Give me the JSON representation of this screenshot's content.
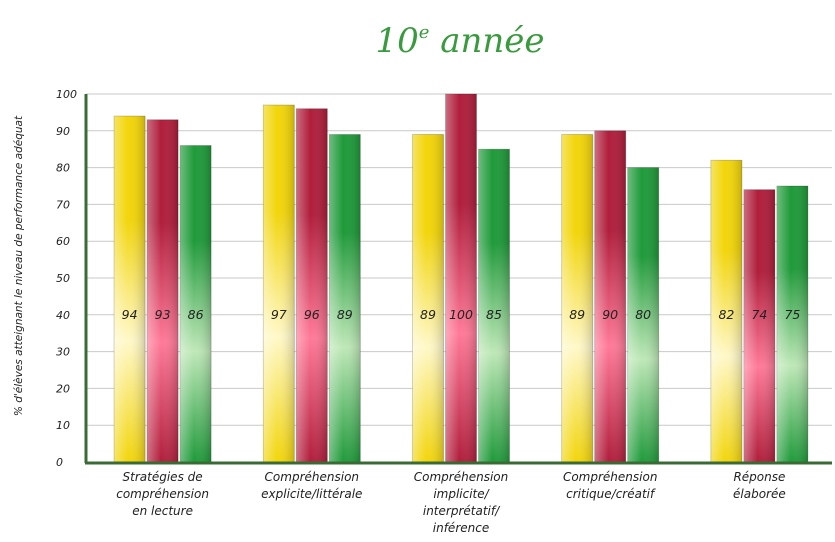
{
  "chart_data": {
    "type": "bar",
    "title_main": "10",
    "title_sup": "e",
    "title_rest": " année",
    "ylabel": "% d'élèves atteignant le niveau de performance adéquat",
    "ylim": [
      0,
      100
    ],
    "yticks": [
      "0",
      "10",
      "20",
      "30",
      "40",
      "50",
      "60",
      "70",
      "80",
      "90",
      "100"
    ],
    "categories": [
      [
        "Stratégies de",
        "compréhension",
        "en lecture"
      ],
      [
        "Compréhension",
        "explicite/littérale"
      ],
      [
        "Compréhension",
        "implicite/",
        "interprétatif/",
        "inférence"
      ],
      [
        "Compréhension",
        "critique/créatif"
      ],
      [
        "Réponse",
        "élaborée"
      ]
    ],
    "series": [
      {
        "values": [
          94,
          97,
          89,
          89,
          82
        ],
        "color": "#f2d50a",
        "light": "#fff8c8"
      },
      {
        "values": [
          93,
          96,
          100,
          90,
          74
        ],
        "color": "#b01e3c",
        "light": "#ff7a98"
      },
      {
        "values": [
          86,
          89,
          85,
          80,
          75
        ],
        "color": "#1f9a3a",
        "light": "#bfe8b8"
      }
    ],
    "grid": true,
    "legend": "none"
  }
}
